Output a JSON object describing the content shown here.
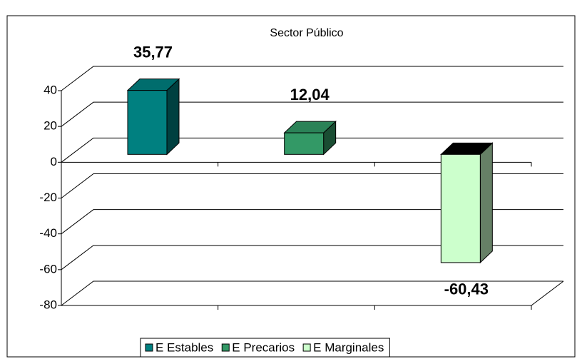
{
  "chart_data": {
    "type": "bar3d",
    "title": "Sector Público",
    "series": [
      {
        "name": "E Estables",
        "color": "#008080",
        "values": [
          35.77
        ],
        "value_labels": [
          "35,77"
        ]
      },
      {
        "name": "E Precarios",
        "color": "#339966",
        "values": [
          12.04
        ],
        "value_labels": [
          "12,04"
        ]
      },
      {
        "name": "E Marginales",
        "color": "#ccffcc",
        "values": [
          -60.43
        ],
        "value_labels": [
          "-60,43"
        ]
      }
    ],
    "ylim": [
      -80,
      40
    ],
    "yticks": [
      -80,
      -60,
      -40,
      -20,
      0,
      20,
      40
    ],
    "grid": true,
    "legend": "bottom"
  }
}
